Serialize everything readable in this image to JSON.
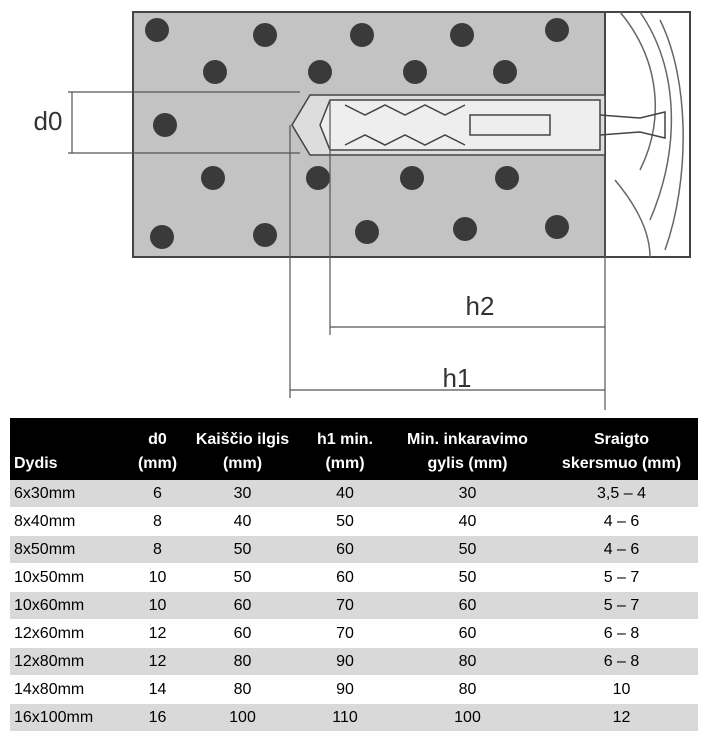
{
  "diagram": {
    "labels": {
      "d0": "d0",
      "h2": "h2",
      "h1": "h1"
    }
  },
  "table": {
    "header": [
      [
        "Dydis"
      ],
      [
        "d0",
        "(mm)"
      ],
      [
        "Kaiščio ilgis",
        "(mm)"
      ],
      [
        "h1 min.",
        "(mm)"
      ],
      [
        "Min. inkaravimo",
        "gylis (mm)"
      ],
      [
        "Sraigto",
        "skersmuo (mm)"
      ]
    ],
    "rows": [
      [
        "6x30mm",
        "6",
        "30",
        "40",
        "30",
        "3,5 – 4"
      ],
      [
        "8x40mm",
        "8",
        "40",
        "50",
        "40",
        "4 – 6"
      ],
      [
        "8x50mm",
        "8",
        "50",
        "60",
        "50",
        "4 – 6"
      ],
      [
        "10x50mm",
        "10",
        "50",
        "60",
        "50",
        "5 – 7"
      ],
      [
        "10x60mm",
        "10",
        "60",
        "70",
        "60",
        "5 – 7"
      ],
      [
        "12x60mm",
        "12",
        "60",
        "70",
        "60",
        "6 – 8"
      ],
      [
        "12x80mm",
        "12",
        "80",
        "90",
        "80",
        "6 – 8"
      ],
      [
        "14x80mm",
        "14",
        "80",
        "90",
        "80",
        "10"
      ],
      [
        "16x100mm",
        "16",
        "100",
        "110",
        "100",
        "12"
      ]
    ]
  }
}
